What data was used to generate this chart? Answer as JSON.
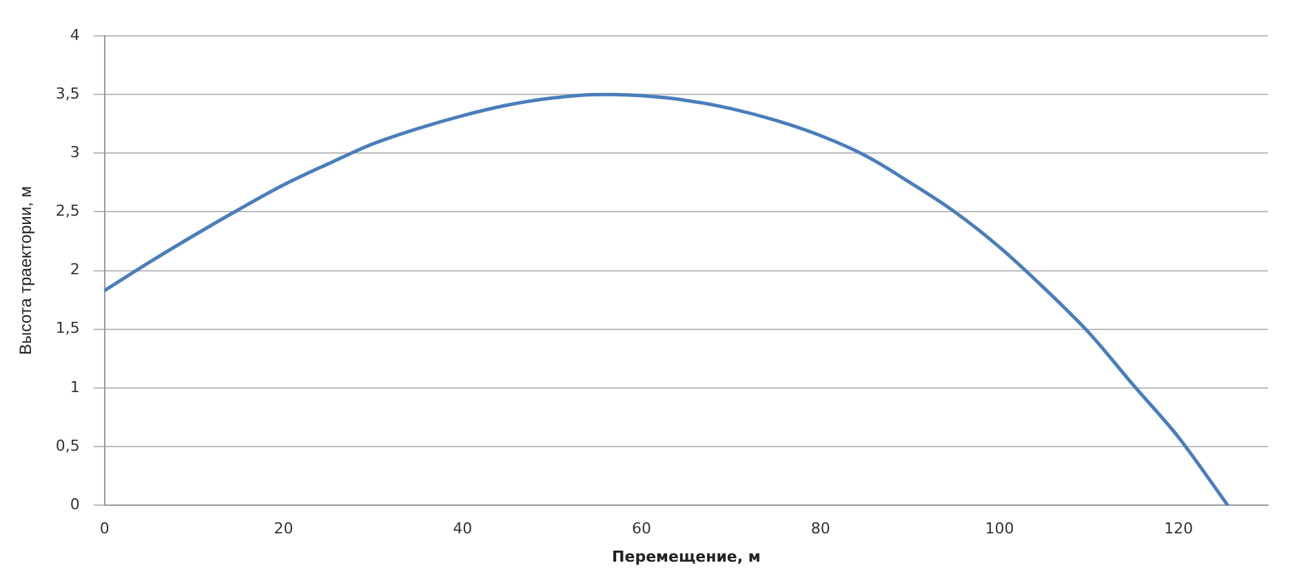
{
  "chart_data": {
    "type": "line",
    "xlabel": "Перемещение, м",
    "ylabel": "Высота траектории, м",
    "series": [
      {
        "color": "#4a7ebb",
        "x": [
          0,
          5,
          10,
          15,
          20,
          25,
          30,
          35,
          40,
          45,
          50,
          55,
          57,
          60,
          65,
          70,
          75,
          80,
          85,
          90,
          95,
          100,
          105,
          110,
          115,
          120,
          125.5
        ],
        "values": [
          1.83,
          2.07,
          2.3,
          2.52,
          2.73,
          2.91,
          3.08,
          3.21,
          3.32,
          3.41,
          3.47,
          3.5,
          3.5,
          3.49,
          3.45,
          3.38,
          3.28,
          3.15,
          2.98,
          2.75,
          2.5,
          2.2,
          1.85,
          1.47,
          1.02,
          0.58,
          0
        ]
      }
    ],
    "xlim": [
      0,
      130
    ],
    "xticks": [
      0,
      20,
      40,
      60,
      80,
      100,
      120
    ],
    "ylim": [
      0,
      4
    ],
    "yticks": [
      0,
      {
        "value": 0.5,
        "label": "0,5"
      },
      1,
      {
        "value": 1.5,
        "label": "1,5"
      },
      2,
      {
        "value": 2.5,
        "label": "2,5"
      },
      3,
      {
        "value": 3.5,
        "label": "3,5"
      },
      4
    ],
    "grid": "y",
    "legend": false,
    "marker": "none",
    "line_style": "solid"
  }
}
